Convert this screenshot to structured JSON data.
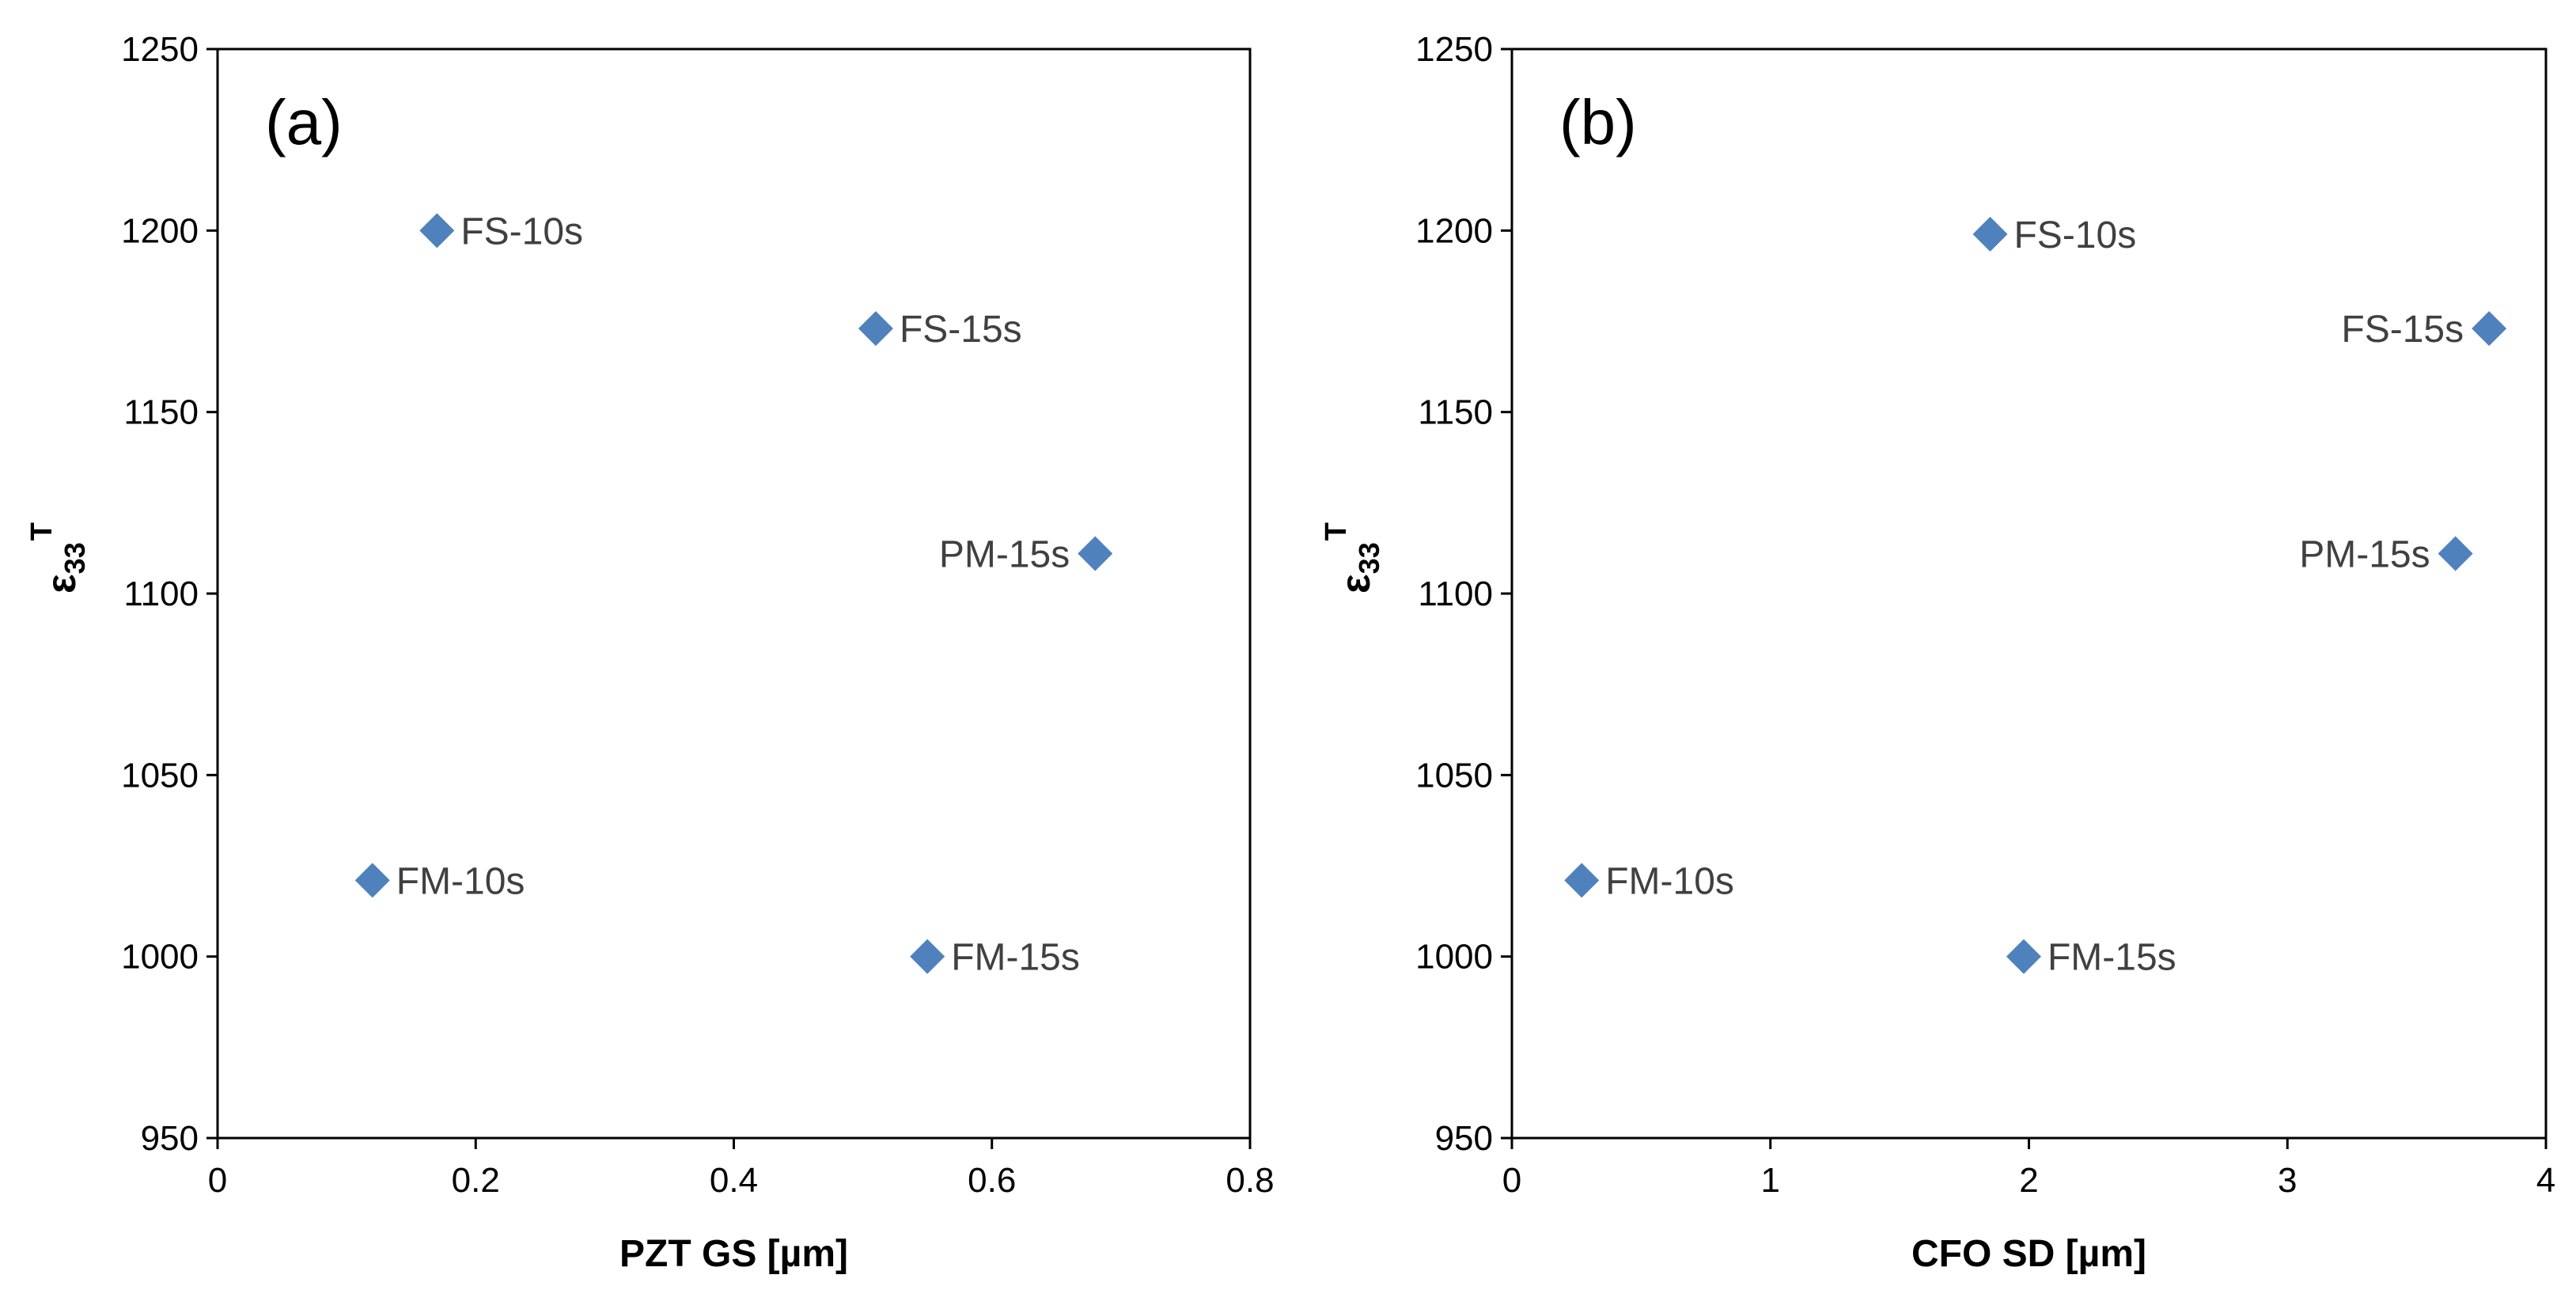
{
  "colors": {
    "marker": "#4F81BD",
    "label_text": "#404040",
    "axis": "#000000"
  },
  "chart_data": [
    {
      "type": "scatter",
      "panel_label": "(a)",
      "xlabel": "PZT GS [µm]",
      "ylabel": {
        "symbol": "ε",
        "subscript": "33",
        "superscript": "T"
      },
      "xlim": [
        0,
        0.8
      ],
      "ylim": [
        950,
        1250
      ],
      "xticks": [
        "0",
        "0.2",
        "0.4",
        "0.6",
        "0.8"
      ],
      "yticks": [
        "950",
        "1000",
        "1050",
        "1100",
        "1150",
        "1200",
        "1250"
      ],
      "marker": "diamond",
      "points": [
        {
          "label": "FS-10s",
          "x": 0.17,
          "y": 1200,
          "label_pos": "right"
        },
        {
          "label": "FS-15s",
          "x": 0.51,
          "y": 1173,
          "label_pos": "right"
        },
        {
          "label": "PM-15s",
          "x": 0.68,
          "y": 1111,
          "label_pos": "left"
        },
        {
          "label": "FM-10s",
          "x": 0.12,
          "y": 1021,
          "label_pos": "right"
        },
        {
          "label": "FM-15s",
          "x": 0.55,
          "y": 1000,
          "label_pos": "right"
        }
      ]
    },
    {
      "type": "scatter",
      "panel_label": "(b)",
      "xlabel": "CFO SD [µm]",
      "ylabel": {
        "symbol": "ε",
        "subscript": "33",
        "superscript": "T"
      },
      "xlim": [
        0,
        4
      ],
      "ylim": [
        950,
        1250
      ],
      "xticks": [
        "0",
        "1",
        "2",
        "3",
        "4"
      ],
      "yticks": [
        "950",
        "1000",
        "1050",
        "1100",
        "1150",
        "1200",
        "1250"
      ],
      "marker": "diamond",
      "points": [
        {
          "label": "FS-10s",
          "x": 1.85,
          "y": 1199,
          "label_pos": "right"
        },
        {
          "label": "FS-15s",
          "x": 3.78,
          "y": 1173,
          "label_pos": "left"
        },
        {
          "label": "PM-15s",
          "x": 3.65,
          "y": 1111,
          "label_pos": "left"
        },
        {
          "label": "FM-10s",
          "x": 0.27,
          "y": 1021,
          "label_pos": "right"
        },
        {
          "label": "FM-15s",
          "x": 1.98,
          "y": 1000,
          "label_pos": "right"
        }
      ]
    }
  ]
}
